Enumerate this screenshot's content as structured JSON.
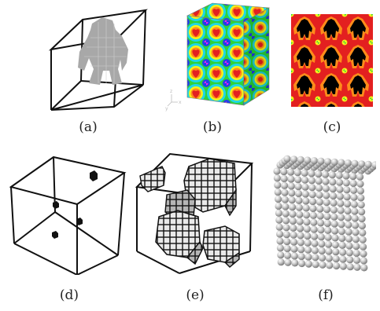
{
  "figure": {
    "captions": [
      "(a)",
      "(b)",
      "(c)",
      "(d)",
      "(e)",
      "(f)"
    ],
    "panels": [
      {
        "id": "a",
        "content": "voxelized gorilla model inside wireframe cube",
        "color": "#aaaaaa"
      },
      {
        "id": "b",
        "content": "cube textured with periodic heat-map pattern"
      },
      {
        "id": "c",
        "content": "tiled gorilla silhouettes with heat-map distance field"
      },
      {
        "id": "d",
        "content": "wireframe cube with four small dark voxels"
      },
      {
        "id": "e",
        "content": "wireframe cube with clusters of outlined voxels"
      },
      {
        "id": "f",
        "content": "grid of grey spheres in a block"
      }
    ],
    "colors": {
      "wire": "#111111",
      "voxel": "#a8a8a8",
      "red": "#e32020",
      "orange": "#ff8c1a",
      "yellow": "#f5f21a",
      "green": "#2fd23a",
      "cyan": "#1fd8e6",
      "blue": "#2040e8",
      "magenta": "#ef1fef",
      "black": "#000000"
    },
    "axis_labels": [
      "z",
      "x",
      "y"
    ]
  }
}
